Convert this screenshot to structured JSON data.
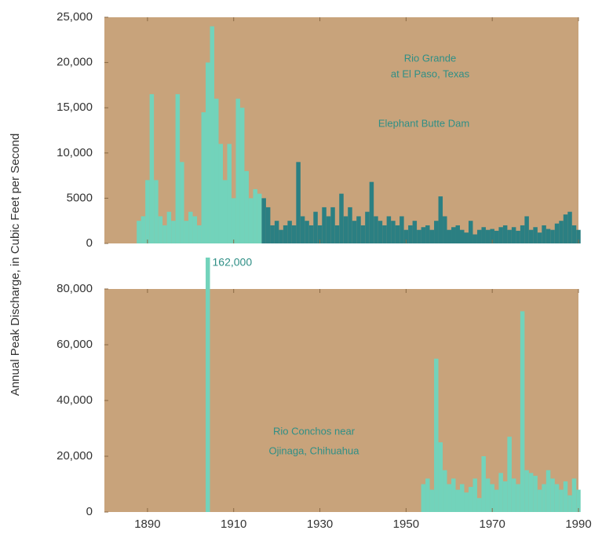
{
  "chart_data": [
    {
      "type": "bar",
      "panel": "a",
      "ylabel": "Annual Peak Discharge, in Cubic Feet per Second",
      "notes": [
        "Rio Grande",
        "at El Paso, Texas",
        "Elephant Butte Dam"
      ],
      "xlim": [
        1880,
        1990
      ],
      "xticks": [
        1890,
        1910,
        1930,
        1950,
        1970,
        1990
      ],
      "ylim": [
        0,
        25000
      ],
      "yticks": [
        0,
        {
          "value": 5000,
          "label": "5000"
        },
        {
          "value": 10000,
          "label": "10,000"
        },
        {
          "value": 15000,
          "label": "15,000"
        },
        {
          "value": 20000,
          "label": "20,000"
        },
        {
          "value": 25000,
          "label": "25,000"
        }
      ],
      "background": "#c8a37b",
      "series": [
        {
          "color": "#72d3bb",
          "x": [
            1888,
            1889,
            1890,
            1891,
            1892,
            1893,
            1894,
            1895,
            1896,
            1897,
            1898,
            1899,
            1900,
            1901,
            1902,
            1903,
            1904,
            1905,
            1906,
            1907,
            1908,
            1909,
            1910,
            1911,
            1912,
            1913,
            1914,
            1915,
            1916
          ],
          "values": [
            2500,
            3000,
            7000,
            16500,
            7000,
            3000,
            2000,
            3500,
            2500,
            16500,
            9000,
            2500,
            3500,
            3000,
            2000,
            14500,
            20000,
            24000,
            16000,
            11000,
            7000,
            11000,
            5000,
            16000,
            15000,
            8000,
            5000,
            6000,
            5500
          ]
        },
        {
          "color": "#2b7f82",
          "x": [
            1917,
            1918,
            1919,
            1920,
            1921,
            1922,
            1923,
            1924,
            1925,
            1926,
            1927,
            1928,
            1929,
            1930,
            1931,
            1932,
            1933,
            1934,
            1935,
            1936,
            1937,
            1938,
            1939,
            1940,
            1941,
            1942,
            1943,
            1944,
            1945,
            1946,
            1947,
            1948,
            1949,
            1950,
            1951,
            1952,
            1953,
            1954,
            1955,
            1956,
            1957,
            1958,
            1959,
            1960,
            1961,
            1962,
            1963,
            1964,
            1965,
            1966,
            1967,
            1968,
            1969,
            1970,
            1971,
            1972,
            1973,
            1974,
            1975,
            1976,
            1977,
            1978,
            1979,
            1980,
            1981,
            1982,
            1983,
            1984,
            1985,
            1986,
            1987,
            1988,
            1989,
            1990
          ],
          "values": [
            5000,
            4000,
            2000,
            2500,
            1500,
            2000,
            2500,
            2000,
            9000,
            3000,
            2500,
            2000,
            3500,
            2000,
            4000,
            3000,
            4000,
            2000,
            5500,
            3000,
            4000,
            2500,
            3000,
            2000,
            3500,
            6800,
            3000,
            2500,
            2000,
            3000,
            2500,
            2000,
            3000,
            1500,
            2000,
            2500,
            1500,
            1800,
            2000,
            1500,
            2500,
            5200,
            3000,
            1500,
            1800,
            2000,
            1500,
            1200,
            2500,
            1000,
            1500,
            1800,
            1500,
            1600,
            1400,
            1800,
            2000,
            1500,
            1800,
            1400,
            2000,
            3000,
            1500,
            1800,
            1200,
            2000,
            1600,
            1500,
            2200,
            2500,
            3200,
            3500,
            2000,
            1500
          ]
        }
      ]
    },
    {
      "type": "bar",
      "panel": "b",
      "notes": [
        "Rio Conchos near",
        "Ojinaga, Chihuahua"
      ],
      "xlim": [
        1880,
        1990
      ],
      "xticks": [
        1890,
        1910,
        1930,
        1950,
        1970,
        1990
      ],
      "ylim": [
        0,
        80000
      ],
      "yticks": [
        0,
        {
          "value": 20000,
          "label": "20,000"
        },
        {
          "value": 40000,
          "label": "40,000"
        },
        {
          "value": 60000,
          "label": "60,000"
        },
        {
          "value": 80000,
          "label": "80,000"
        }
      ],
      "background": "#c8a37b",
      "series": [
        {
          "color": "#72d3bb",
          "x": [
            1904,
            1954,
            1955,
            1956,
            1957,
            1958,
            1959,
            1960,
            1961,
            1962,
            1963,
            1964,
            1965,
            1966,
            1967,
            1968,
            1969,
            1970,
            1971,
            1972,
            1973,
            1974,
            1975,
            1976,
            1977,
            1978,
            1979,
            1980,
            1981,
            1982,
            1983,
            1984,
            1985,
            1986,
            1987,
            1988,
            1989,
            1990
          ],
          "values": [
            162000,
            10000,
            12000,
            8000,
            55000,
            25000,
            15000,
            10000,
            12000,
            8000,
            10000,
            7000,
            9000,
            12000,
            5000,
            20000,
            12000,
            10000,
            8000,
            14000,
            11000,
            27000,
            12000,
            10000,
            72000,
            15000,
            14000,
            13000,
            8000,
            10000,
            15000,
            12000,
            10000,
            8000,
            11000,
            6000,
            12000,
            8000
          ],
          "value_labels": [
            "162,000",
            null,
            null,
            null,
            null,
            null,
            null,
            null,
            null,
            null,
            null,
            null,
            null,
            null,
            null,
            null,
            null,
            null,
            null,
            null,
            null,
            null,
            null,
            null,
            null,
            null,
            null,
            null,
            null,
            null,
            null,
            null,
            null,
            null,
            null,
            null,
            null,
            null
          ]
        }
      ]
    }
  ]
}
